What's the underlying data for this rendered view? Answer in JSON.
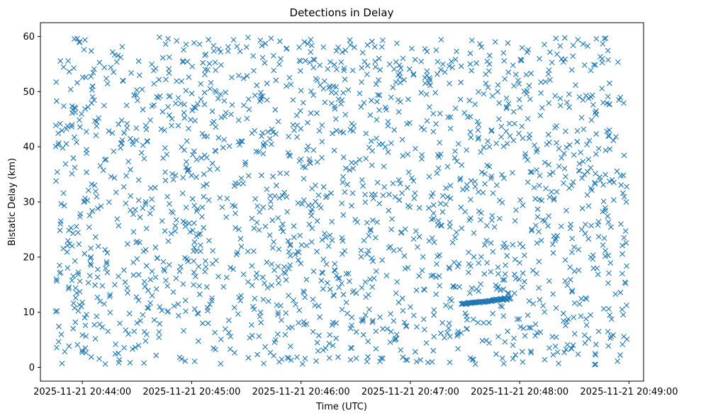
{
  "chart_data": {
    "type": "scatter",
    "title": "Detections in Delay",
    "xlabel": "Time (UTC)",
    "ylabel": "Bistatic Delay (km)",
    "marker": "x",
    "marker_color": "#1f77b4",
    "grid": false,
    "legend": "none",
    "x_axis": {
      "type": "time",
      "range": [
        "2025-11-21 20:43:37",
        "2025-11-21 20:49:08"
      ],
      "ticks": [
        "2025-11-21 20:44:00",
        "2025-11-21 20:45:00",
        "2025-11-21 20:46:00",
        "2025-11-21 20:47:00",
        "2025-11-21 20:48:00",
        "2025-11-21 20:49:00"
      ],
      "tick_labels": [
        "2025-11-21 20:44:00",
        "2025-11-21 20:45:00",
        "2025-11-21 20:46:00",
        "2025-11-21 20:47:00",
        "2025-11-21 20:48:00",
        "2025-11-21 20:49:00"
      ]
    },
    "y_axis": {
      "range": [
        -2.5,
        62.5
      ],
      "ticks": [
        0,
        10,
        20,
        30,
        40,
        50,
        60
      ],
      "tick_labels": [
        "0",
        "10",
        "20",
        "30",
        "40",
        "50",
        "60"
      ]
    },
    "series": [
      {
        "random_detections": {
          "count": 1850,
          "x_range": [
            "2025-11-21 20:43:45",
            "2025-11-21 20:48:59"
          ],
          "y_range": [
            0.5,
            60
          ]
        },
        "track": {
          "x_range": [
            "2025-11-21 20:47:28",
            "2025-11-21 20:47:55"
          ],
          "y_range": [
            11.5,
            12.5
          ],
          "count": 60
        }
      }
    ]
  }
}
